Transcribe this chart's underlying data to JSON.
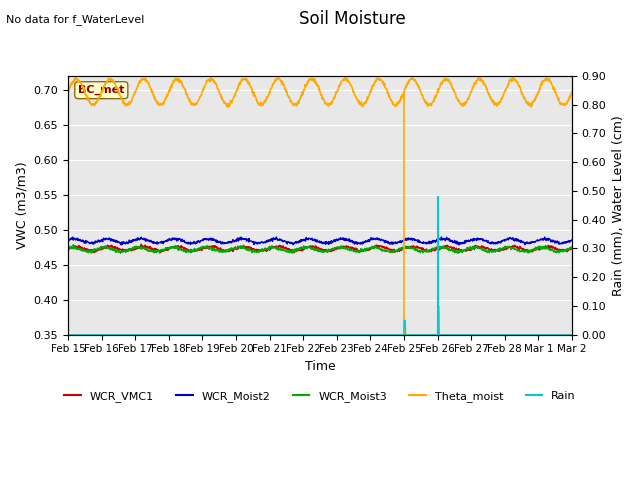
{
  "title": "Soil Moisture",
  "top_left_text": "No data for f_WaterLevel",
  "ylabel_left": "VWC (m3/m3)",
  "ylabel_right": "Rain (mm), Water Level (cm)",
  "xlabel": "Time",
  "annotation_box": "BC_met",
  "ylim_left": [
    0.35,
    0.72
  ],
  "ylim_right": [
    0.0,
    0.9
  ],
  "yticks_left": [
    0.35,
    0.4,
    0.45,
    0.5,
    0.55,
    0.6,
    0.65,
    0.7
  ],
  "yticks_right": [
    0.0,
    0.1,
    0.2,
    0.3,
    0.4,
    0.5,
    0.6,
    0.7,
    0.8,
    0.9
  ],
  "xtick_labels": [
    "Feb 15",
    "Feb 16",
    "Feb 17",
    "Feb 18",
    "Feb 19",
    "Feb 20",
    "Feb 21",
    "Feb 22",
    "Feb 23",
    "Feb 24",
    "Feb 25",
    "Feb 26",
    "Feb 27",
    "Feb 28",
    "Mar 1",
    "Mar 2"
  ],
  "colors": {
    "WCR_VMC1": "#cc0000",
    "WCR_Moist2": "#0000cc",
    "WCR_Moist3": "#00aa00",
    "Theta_moist": "#ffaa00",
    "Rain": "#00cccc"
  },
  "plot_bg_color": "#e8e8e8"
}
